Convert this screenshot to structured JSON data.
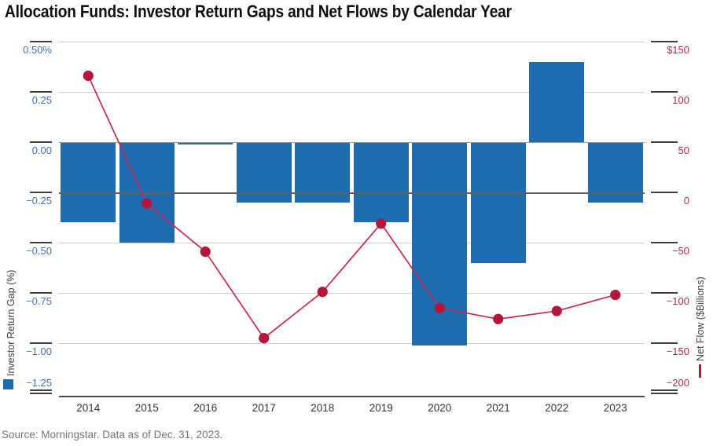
{
  "title": "Allocation Funds: Investor Return Gaps and Net Flows by Calendar Year",
  "source": "Source: Morningstar. Data as of Dec. 31, 2023.",
  "colors": {
    "bar_blue": "#1E6BB2",
    "line_red": "#C52B52",
    "dot_red": "#B2173A",
    "left_tick_blue": "#4170B4",
    "right_tick_red": "#C32440",
    "grid_light": "#CBCBCB",
    "year_label_gray": "#333333",
    "source_gray": "#757575"
  },
  "chart_data": {
    "type": "bar+line (dual axis)",
    "title": "Allocation Funds: Investor Return Gaps and Net Flows by Calendar Year",
    "categories": [
      "2014",
      "2015",
      "2016",
      "2017",
      "2018",
      "2019",
      "2020",
      "2021",
      "2022",
      "2023"
    ],
    "series": [
      {
        "name": "Investor Return Gap (%)",
        "kind": "bar",
        "axis": "left",
        "values": [
          -0.4,
          -0.5,
          -0.01,
          -0.3,
          -0.3,
          -0.4,
          -1.01,
          -0.6,
          0.4,
          -0.3
        ]
      },
      {
        "name": "Net Flow ($Billions)",
        "kind": "line",
        "axis": "right",
        "values": [
          116,
          -11,
          -59,
          -145,
          -99,
          -31,
          -115,
          -126,
          -118,
          -102
        ]
      }
    ],
    "left_axis": {
      "label": "Investor Return Gap (%)",
      "tick_labels": [
        "0.50%",
        "0.25",
        "0.00",
        "−0.25",
        "−0.50",
        "−0.75",
        "−1.00",
        "−1.25"
      ],
      "tick_values": [
        0.5,
        0.25,
        0,
        -0.25,
        -0.5,
        -0.75,
        -1,
        -1.25
      ],
      "range": [
        -1.25,
        0.5
      ]
    },
    "right_axis": {
      "label": "Net Flow ($Billions)",
      "tick_labels": [
        "$150",
        "100",
        "50",
        "0",
        "−50",
        "−100",
        "−150",
        "−200"
      ],
      "tick_values": [
        150,
        100,
        50,
        0,
        -50,
        -100,
        -150,
        -200
      ],
      "range": [
        -200,
        150
      ]
    },
    "x_labels": [
      "2014",
      "2015",
      "2016",
      "2017",
      "2018",
      "2019",
      "2020",
      "2021",
      "2022",
      "2023"
    ],
    "grid": true,
    "legend_position": "axis-ends-bottom"
  }
}
